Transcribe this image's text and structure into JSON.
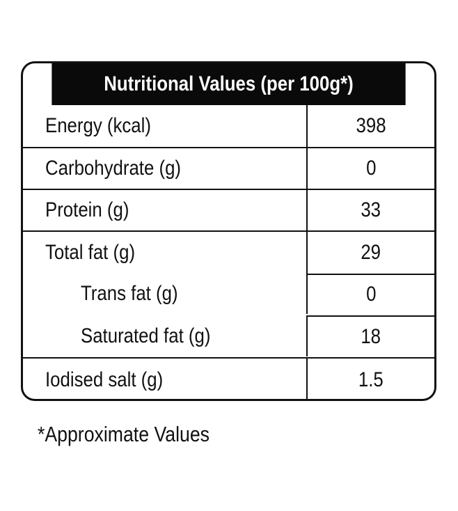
{
  "table": {
    "title": "Nutritional Values (per 100g*)",
    "rows": [
      {
        "label": "Energy (kcal)",
        "value": "398"
      },
      {
        "label": "Carbohydrate (g)",
        "value": "0"
      },
      {
        "label": "Protein (g)",
        "value": "33"
      },
      {
        "label": "Total fat (g)",
        "value": "29"
      },
      {
        "label": "Trans fat (g)",
        "value": "0"
      },
      {
        "label": "Saturated fat (g)",
        "value": "18"
      },
      {
        "label": "Iodised salt (g)",
        "value": "1.5"
      }
    ]
  },
  "footnote": "*Approximate Values"
}
